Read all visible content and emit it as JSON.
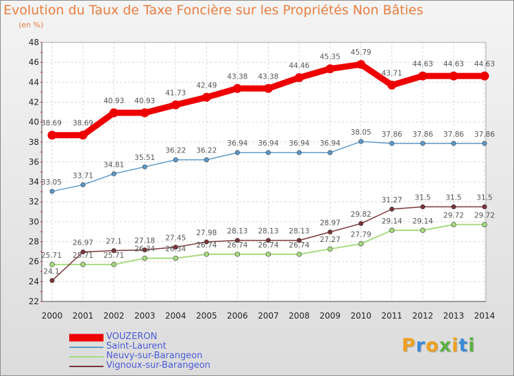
{
  "title": "Evolution du Taux de Taxe Foncière sur les Propriétés Non Bâties",
  "unit_label": "(en %)",
  "brand": {
    "letters": [
      "P",
      "r",
      "o",
      "x",
      "i",
      "t",
      "i"
    ],
    "colors": [
      "#f0a020",
      "#3c8ad8",
      "#f0a020",
      "#5ab040",
      "#f0a020",
      "#3c8ad8",
      "#5ab040"
    ]
  },
  "chart_data": {
    "type": "line",
    "title": "Evolution du Taux de Taxe Foncière sur les Propriétés Non Bâties",
    "ylabel": "(en %)",
    "xlabel": "",
    "x": [
      2000,
      2001,
      2002,
      2003,
      2004,
      2005,
      2006,
      2007,
      2008,
      2009,
      2010,
      2011,
      2012,
      2013,
      2014
    ],
    "x_tick_labels": [
      "2000",
      "2001",
      "2002",
      "2003",
      "2004",
      "2005",
      "2006",
      "2007",
      "2008",
      "2009",
      "2010",
      "2011",
      "2012",
      "2013",
      "2014"
    ],
    "ylim": [
      22,
      48
    ],
    "y_ticks": [
      22,
      24,
      26,
      28,
      30,
      32,
      34,
      36,
      38,
      40,
      42,
      44,
      46,
      48
    ],
    "grid": true,
    "legend_position": "bottom-left",
    "series": [
      {
        "name": "VOUZERON",
        "color": "#ee0000",
        "values": [
          38.69,
          38.69,
          40.93,
          40.93,
          41.73,
          42.49,
          43.38,
          43.38,
          44.46,
          45.35,
          45.79,
          43.71,
          44.63,
          44.63,
          44.63
        ],
        "labels": [
          "38.69",
          "38.69",
          "40.93",
          "40.93",
          "41.73",
          "42.49",
          "43.38",
          "43.38",
          "44.46",
          "45.35",
          "45.79",
          "43.71",
          "44.63",
          "44.63",
          "44.63"
        ]
      },
      {
        "name": "Saint-Laurent",
        "color": "#5a9acb",
        "values": [
          33.05,
          33.71,
          34.81,
          35.51,
          36.22,
          36.22,
          36.94,
          36.94,
          36.94,
          36.94,
          38.05,
          37.86,
          37.86,
          37.86,
          37.86
        ],
        "labels": [
          "33.05",
          "33.71",
          "34.81",
          "35.51",
          "36.22",
          "36.22",
          "36.94",
          "36.94",
          "36.94",
          "36.94",
          "38.05",
          "37.86",
          "37.86",
          "37.86",
          "37.86"
        ]
      },
      {
        "name": "Neuvy-sur-Barangeon",
        "color": "#a6dc7e",
        "values": [
          25.71,
          25.71,
          25.71,
          26.34,
          26.34,
          26.74,
          26.74,
          26.74,
          26.74,
          27.27,
          27.79,
          29.14,
          29.14,
          29.72,
          29.72
        ],
        "labels": [
          "25.71",
          "25.71",
          "25.71",
          "26.34",
          "26.34",
          "26.74",
          "26.74",
          "26.74",
          "26.74",
          "27.27",
          "27.79",
          "29.14",
          "29.14",
          "29.72",
          "29.72"
        ]
      },
      {
        "name": "Vignoux-sur-Barangeon",
        "color": "#7a3438",
        "values": [
          24.1,
          26.97,
          27.1,
          27.18,
          27.45,
          27.98,
          28.13,
          28.13,
          28.13,
          28.97,
          29.82,
          31.27,
          31.5,
          31.5,
          31.5
        ],
        "labels": [
          "24.1",
          "26.97",
          "27.1",
          "27.18",
          "27.45",
          "27.98",
          "28.13",
          "28.13",
          "28.13",
          "28.97",
          "29.82",
          "31.27",
          "31.5",
          "31.5",
          "31.5"
        ]
      }
    ]
  }
}
